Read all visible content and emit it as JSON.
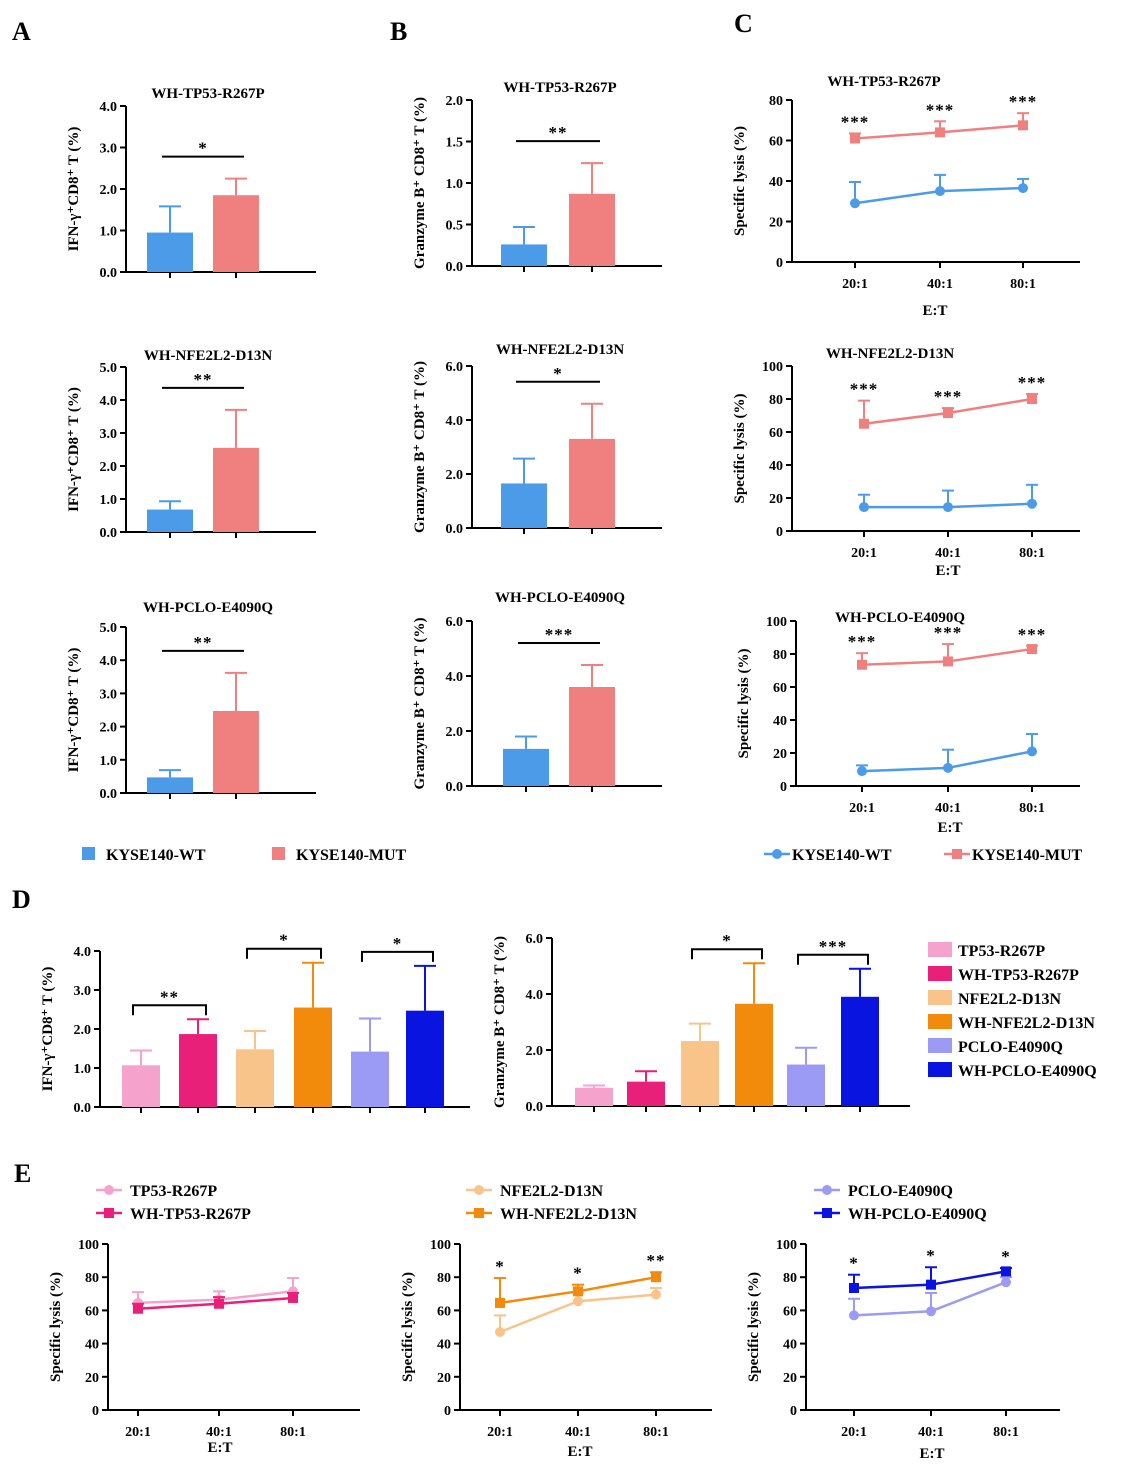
{
  "figure": {
    "panel_labels": [
      "A",
      "B",
      "C",
      "D",
      "E"
    ],
    "colors": {
      "KYSE140-WT": "#4c9be8",
      "KYSE140-MUT": "#f08080",
      "TP53-R267P": "#f5a3cc",
      "WH-TP53-R267P": "#e8207a",
      "NFE2L2-D13N": "#f9c48a",
      "WH-NFE2L2-D13N": "#f28a0c",
      "PCLO-E4090Q": "#9b9bf5",
      "WH-PCLO-E4090Q": "#0a14e0"
    },
    "legend_top": [
      {
        "label": "KYSE140-WT",
        "color": "#4c9be8"
      },
      {
        "label": "KYSE140-MUT",
        "color": "#f08080"
      }
    ],
    "legend_top_line": [
      {
        "label": "KYSE140-WT",
        "color": "#4c9be8"
      },
      {
        "label": "KYSE140-MUT",
        "color": "#f08080"
      }
    ],
    "legend_d": [
      {
        "label": "TP53-R267P",
        "color": "#f5a3cc"
      },
      {
        "label": "WH-TP53-R267P",
        "color": "#e8207a"
      },
      {
        "label": "NFE2L2-D13N",
        "color": "#f9c48a"
      },
      {
        "label": "WH-NFE2L2-D13N",
        "color": "#f28a0c"
      },
      {
        "label": "PCLO-E4090Q",
        "color": "#9b9bf5"
      },
      {
        "label": "WH-PCLO-E4090Q",
        "color": "#0a14e0"
      }
    ]
  },
  "chart_data": [
    {
      "id": "A1",
      "panel": "A",
      "type": "bar",
      "title": "WH-TP53-R267P",
      "ylabel": "IFN-γ⁺CD8⁺ T (%)",
      "ylim": [
        0,
        4
      ],
      "yticks": [
        "0.0",
        "1.0",
        "2.0",
        "3.0",
        "4.0"
      ],
      "series": [
        {
          "name": "KYSE140-WT",
          "values": [
            0.95
          ],
          "errors": [
            0.63
          ]
        },
        {
          "name": "KYSE140-MUT",
          "values": [
            1.85
          ],
          "errors": [
            0.4
          ]
        }
      ],
      "significance": [
        {
          "from": 0,
          "to": 1,
          "label": "*"
        }
      ]
    },
    {
      "id": "A2",
      "panel": "A",
      "type": "bar",
      "title": "WH-NFE2L2-D13N",
      "ylabel": "IFN-γ⁺CD8⁺ T (%)",
      "ylim": [
        0,
        5
      ],
      "yticks": [
        "0.0",
        "1.0",
        "2.0",
        "3.0",
        "4.0",
        "5.0"
      ],
      "series": [
        {
          "name": "KYSE140-WT",
          "values": [
            0.68
          ],
          "errors": [
            0.25
          ]
        },
        {
          "name": "KYSE140-MUT",
          "values": [
            2.55
          ],
          "errors": [
            1.15
          ]
        }
      ],
      "significance": [
        {
          "from": 0,
          "to": 1,
          "label": "**"
        }
      ]
    },
    {
      "id": "A3",
      "panel": "A",
      "type": "bar",
      "title": "WH-PCLO-E4090Q",
      "ylabel": "IFN-γ⁺CD8⁺ T (%)",
      "ylim": [
        0,
        5
      ],
      "yticks": [
        "0.0",
        "1.0",
        "2.0",
        "3.0",
        "4.0",
        "5.0"
      ],
      "series": [
        {
          "name": "KYSE140-WT",
          "values": [
            0.47
          ],
          "errors": [
            0.22
          ]
        },
        {
          "name": "KYSE140-MUT",
          "values": [
            2.47
          ],
          "errors": [
            1.15
          ]
        }
      ],
      "significance": [
        {
          "from": 0,
          "to": 1,
          "label": "**"
        }
      ]
    },
    {
      "id": "B1",
      "panel": "B",
      "type": "bar",
      "title": "WH-TP53-R267P",
      "ylabel": "Granzyme B⁺ CD8⁺ T (%)",
      "ylim": [
        0,
        2
      ],
      "yticks": [
        "0.0",
        "0.5",
        "1.0",
        "1.5",
        "2.0"
      ],
      "series": [
        {
          "name": "KYSE140-WT",
          "values": [
            0.26
          ],
          "errors": [
            0.21
          ]
        },
        {
          "name": "KYSE140-MUT",
          "values": [
            0.87
          ],
          "errors": [
            0.37
          ]
        }
      ],
      "significance": [
        {
          "from": 0,
          "to": 1,
          "label": "**"
        }
      ]
    },
    {
      "id": "B2",
      "panel": "B",
      "type": "bar",
      "title": "WH-NFE2L2-D13N",
      "ylabel": "Granzyme B⁺ CD8⁺ T (%)",
      "ylim": [
        0,
        6
      ],
      "yticks": [
        "0.0",
        "2.0",
        "4.0",
        "6.0"
      ],
      "series": [
        {
          "name": "KYSE140-WT",
          "values": [
            1.65
          ],
          "errors": [
            0.92
          ]
        },
        {
          "name": "KYSE140-MUT",
          "values": [
            3.3
          ],
          "errors": [
            1.3
          ]
        }
      ],
      "significance": [
        {
          "from": 0,
          "to": 1,
          "label": "*"
        }
      ]
    },
    {
      "id": "B3",
      "panel": "B",
      "type": "bar",
      "title": "WH-PCLO-E4090Q",
      "ylabel": "Granzyme B⁺ CD8⁺ T (%)",
      "ylim": [
        0,
        6
      ],
      "yticks": [
        "0.0",
        "2.0",
        "4.0",
        "6.0"
      ],
      "series": [
        {
          "name": "KYSE140-WT",
          "values": [
            1.35
          ],
          "errors": [
            0.45
          ]
        },
        {
          "name": "KYSE140-MUT",
          "values": [
            3.6
          ],
          "errors": [
            0.8
          ]
        }
      ],
      "significance": [
        {
          "from": 0,
          "to": 1,
          "label": "***"
        }
      ]
    },
    {
      "id": "C1",
      "panel": "C",
      "type": "line",
      "title": "WH-TP53-R267P",
      "ylabel": "Specific lysis (%)",
      "xlabel": "E:T",
      "categories": [
        "20:1",
        "40:1",
        "80:1"
      ],
      "ylim": [
        0,
        80
      ],
      "yticks": [
        "0",
        "20",
        "40",
        "60",
        "80"
      ],
      "series": [
        {
          "name": "KYSE140-WT",
          "values": [
            29,
            35,
            36.5
          ],
          "errors": [
            10.5,
            8,
            4.5
          ]
        },
        {
          "name": "KYSE140-MUT",
          "values": [
            61,
            64,
            67.5
          ],
          "errors": [
            2.5,
            5.5,
            6
          ]
        }
      ],
      "significance": [
        "***",
        "***",
        "***"
      ]
    },
    {
      "id": "C2",
      "panel": "C",
      "type": "line",
      "title": "WH-NFE2L2-D13N",
      "ylabel": "Specific lysis (%)",
      "xlabel": "E:T",
      "categories": [
        "20:1",
        "40:1",
        "80:1"
      ],
      "ylim": [
        0,
        100
      ],
      "yticks": [
        "0",
        "20",
        "40",
        "60",
        "80",
        "100"
      ],
      "series": [
        {
          "name": "KYSE140-WT",
          "values": [
            14.5,
            14.5,
            16.5
          ],
          "errors": [
            7.5,
            10,
            11.5
          ]
        },
        {
          "name": "KYSE140-MUT",
          "values": [
            65,
            71.5,
            80
          ],
          "errors": [
            14,
            3,
            3
          ]
        }
      ],
      "significance": [
        "***",
        "***",
        "***"
      ]
    },
    {
      "id": "C3",
      "panel": "C",
      "type": "line",
      "title": "WH-PCLO-E4090Q",
      "ylabel": "Specific lysis (%)",
      "xlabel": "E:T",
      "categories": [
        "20:1",
        "40:1",
        "80:1"
      ],
      "ylim": [
        0,
        100
      ],
      "yticks": [
        "0",
        "20",
        "40",
        "60",
        "80",
        "100"
      ],
      "series": [
        {
          "name": "KYSE140-WT",
          "values": [
            9,
            11,
            21
          ],
          "errors": [
            3.5,
            11,
            10.5
          ]
        },
        {
          "name": "KYSE140-MUT",
          "values": [
            73.5,
            75.5,
            83
          ],
          "errors": [
            7,
            10.5,
            2
          ]
        }
      ],
      "significance": [
        "***",
        "***",
        "***"
      ]
    },
    {
      "id": "D1",
      "panel": "D",
      "type": "bar",
      "title": "",
      "ylabel": "IFN-γ⁺CD8⁺ T (%)",
      "ylim": [
        0,
        4
      ],
      "yticks": [
        "0.0",
        "1.0",
        "2.0",
        "3.0",
        "4.0"
      ],
      "series": [
        {
          "name": "TP53-R267P",
          "values": [
            1.07
          ],
          "errors": [
            0.38
          ]
        },
        {
          "name": "WH-TP53-R267P",
          "values": [
            1.87
          ],
          "errors": [
            0.38
          ]
        },
        {
          "name": "NFE2L2-D13N",
          "values": [
            1.48
          ],
          "errors": [
            0.47
          ]
        },
        {
          "name": "WH-NFE2L2-D13N",
          "values": [
            2.55
          ],
          "errors": [
            1.15
          ]
        },
        {
          "name": "PCLO-E4090Q",
          "values": [
            1.42
          ],
          "errors": [
            0.85
          ]
        },
        {
          "name": "WH-PCLO-E4090Q",
          "values": [
            2.47
          ],
          "errors": [
            1.15
          ]
        }
      ],
      "significance": [
        {
          "from": 0,
          "to": 1,
          "label": "**"
        },
        {
          "from": 2,
          "to": 3,
          "label": "*"
        },
        {
          "from": 4,
          "to": 5,
          "label": "*"
        }
      ]
    },
    {
      "id": "D2",
      "panel": "D",
      "type": "bar",
      "title": "",
      "ylabel": "Granzyme B⁺ CD8⁺ T (%)",
      "ylim": [
        0,
        6
      ],
      "yticks": [
        "0.0",
        "2.0",
        "4.0",
        "6.0"
      ],
      "series": [
        {
          "name": "TP53-R267P",
          "values": [
            0.65
          ],
          "errors": [
            0.08
          ]
        },
        {
          "name": "WH-TP53-R267P",
          "values": [
            0.87
          ],
          "errors": [
            0.37
          ]
        },
        {
          "name": "NFE2L2-D13N",
          "values": [
            2.32
          ],
          "errors": [
            0.62
          ]
        },
        {
          "name": "WH-NFE2L2-D13N",
          "values": [
            3.65
          ],
          "errors": [
            1.45
          ]
        },
        {
          "name": "PCLO-E4090Q",
          "values": [
            1.48
          ],
          "errors": [
            0.6
          ]
        },
        {
          "name": "WH-PCLO-E4090Q",
          "values": [
            3.9
          ],
          "errors": [
            1.0
          ]
        }
      ],
      "significance": [
        {
          "from": 2,
          "to": 3,
          "label": "*"
        },
        {
          "from": 4,
          "to": 5,
          "label": "***"
        }
      ]
    },
    {
      "id": "E1",
      "panel": "E",
      "type": "line",
      "title": "",
      "ylabel": "Specific lysis (%)",
      "xlabel": "E:T",
      "categories": [
        "20:1",
        "40:1",
        "80:1"
      ],
      "ylim": [
        0,
        100
      ],
      "yticks": [
        "0",
        "20",
        "40",
        "60",
        "80",
        "100"
      ],
      "legend": [
        "TP53-R267P",
        "WH-TP53-R267P"
      ],
      "series": [
        {
          "name": "TP53-R267P",
          "values": [
            64.5,
            66.5,
            71.5
          ],
          "errors": [
            6.5,
            5,
            8
          ]
        },
        {
          "name": "WH-TP53-R267P",
          "values": [
            61,
            64,
            67.5
          ],
          "errors": [
            3,
            4,
            3
          ]
        }
      ],
      "significance": [
        "",
        "",
        ""
      ]
    },
    {
      "id": "E2",
      "panel": "E",
      "type": "line",
      "title": "",
      "ylabel": "Specific lysis (%)",
      "xlabel": "E:T",
      "categories": [
        "20:1",
        "40:1",
        "80:1"
      ],
      "ylim": [
        0,
        100
      ],
      "yticks": [
        "0",
        "20",
        "40",
        "60",
        "80",
        "100"
      ],
      "legend": [
        "NFE2L2-D13N",
        "WH-NFE2L2-D13N"
      ],
      "series": [
        {
          "name": "NFE2L2-D13N",
          "values": [
            47,
            65.5,
            69.5
          ],
          "errors": [
            10,
            5,
            4
          ]
        },
        {
          "name": "WH-NFE2L2-D13N",
          "values": [
            64.5,
            71.5,
            80
          ],
          "errors": [
            15,
            4,
            3
          ]
        }
      ],
      "significance": [
        "*",
        "*",
        "**"
      ]
    },
    {
      "id": "E3",
      "panel": "E",
      "type": "line",
      "title": "",
      "ylabel": "Specific lysis (%)",
      "xlabel": "E:T",
      "categories": [
        "20:1",
        "40:1",
        "80:1"
      ],
      "ylim": [
        0,
        100
      ],
      "yticks": [
        "0",
        "20",
        "40",
        "60",
        "80",
        "100"
      ],
      "legend": [
        "PCLO-E4090Q",
        "WH-PCLO-E4090Q"
      ],
      "series": [
        {
          "name": "PCLO-E4090Q",
          "values": [
            57,
            59.5,
            77
          ],
          "errors": [
            10,
            11,
            3
          ]
        },
        {
          "name": "WH-PCLO-E4090Q",
          "values": [
            73.5,
            75.5,
            83.5
          ],
          "errors": [
            8,
            10.5,
            2
          ]
        }
      ],
      "significance": [
        "*",
        "*",
        "*"
      ]
    }
  ]
}
